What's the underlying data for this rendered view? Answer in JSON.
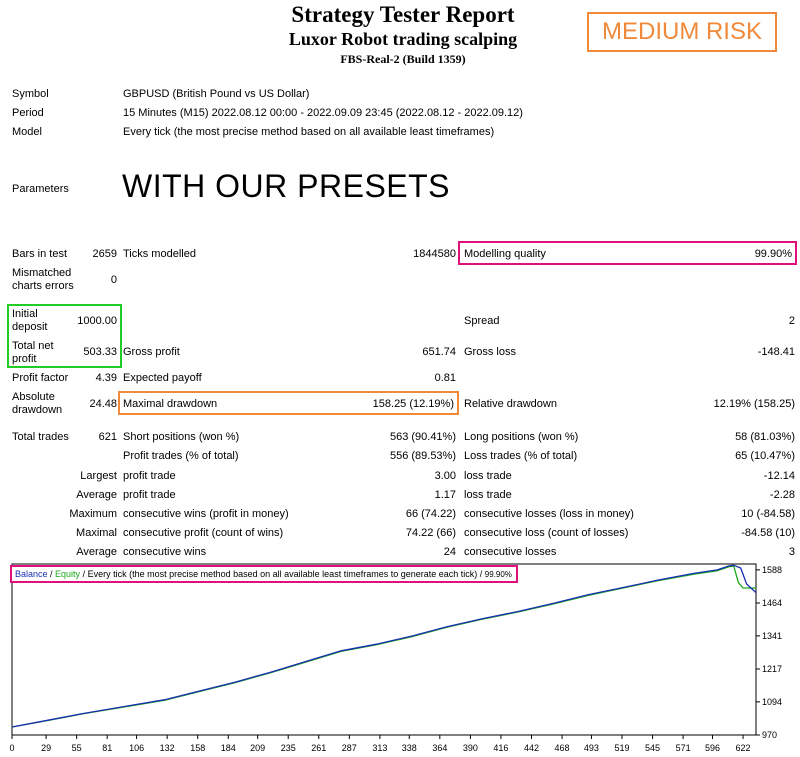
{
  "header": {
    "title": "Strategy Tester Report",
    "subtitle": "Luxor Robot trading scalping",
    "server": "FBS-Real-2 (Build 1359)",
    "risk_badge": "MEDIUM RISK"
  },
  "info": {
    "symbol_label": "Symbol",
    "symbol_value": "GBPUSD (British Pound vs US Dollar)",
    "period_label": "Period",
    "period_value": "15 Minutes (M15) 2022.08.12 00:00 - 2022.09.09 23:45 (2022.08.12 - 2022.09.12)",
    "model_label": "Model",
    "model_value": "Every tick (the most precise method based on all available least timeframes)",
    "parameters_label": "Parameters",
    "parameters_value": "WITH OUR PRESETS"
  },
  "stats": {
    "bars_label": "Bars in test",
    "bars_value": "2659",
    "ticks_label": "Ticks modelled",
    "ticks_value": "1844580",
    "quality_label": "Modelling quality",
    "quality_value": "99.90%",
    "mismatch_label_1": "Mismatched",
    "mismatch_label_2": "charts errors",
    "mismatch_value": "0",
    "deposit_label_1": "Initial",
    "deposit_label_2": "deposit",
    "deposit_value": "1000.00",
    "spread_label": "Spread",
    "spread_value": "2",
    "netprofit_label_1": "Total net",
    "netprofit_label_2": "profit",
    "netprofit_value": "503.33",
    "grossprofit_label": "Gross profit",
    "grossprofit_value": "651.74",
    "grossloss_label": "Gross loss",
    "grossloss_value": "-148.41",
    "pf_label": "Profit factor",
    "pf_value": "4.39",
    "payoff_label": "Expected payoff",
    "payoff_value": "0.81",
    "absdd_label_1": "Absolute",
    "absdd_label_2": "drawdown",
    "absdd_value": "24.48",
    "maxdd_label": "Maximal drawdown",
    "maxdd_value": "158.25 (12.19%)",
    "reldd_label": "Relative drawdown",
    "reldd_value": "12.19% (158.25)"
  },
  "trades": {
    "total_label": "Total trades",
    "total_value": "621",
    "short_label": "Short positions (won %)",
    "short_value": "563 (90.41%)",
    "long_label": "Long positions (won %)",
    "long_value": "58 (81.03%)",
    "profit_trades_label": "Profit trades (% of total)",
    "profit_trades_value": "556 (89.53%)",
    "loss_trades_label": "Loss trades (% of total)",
    "loss_trades_value": "65 (10.47%)",
    "largest_label": "Largest",
    "largest_profit_label": "profit trade",
    "largest_profit_value": "3.00",
    "largest_loss_label": "loss trade",
    "largest_loss_value": "-12.14",
    "average_label": "Average",
    "average_profit_label": "profit trade",
    "average_profit_value": "1.17",
    "average_loss_label": "loss trade",
    "average_loss_value": "-2.28",
    "maximum_label": "Maximum",
    "max_cons_wins_label": "consecutive wins (profit in money)",
    "max_cons_wins_value": "66 (74.22)",
    "max_cons_losses_label": "consecutive losses (loss in money)",
    "max_cons_losses_value": "10 (-84.58)",
    "maximal_label": "Maximal",
    "maximal_profit_label": "consecutive profit (count of wins)",
    "maximal_profit_value": "74.22 (66)",
    "maximal_loss_label": "consecutive loss (count of losses)",
    "maximal_loss_value": "-84.58 (10)",
    "avg2_label": "Average",
    "avg_cons_wins_label": "consecutive wins",
    "avg_cons_wins_value": "24",
    "avg_cons_losses_label": "consecutive losses",
    "avg_cons_losses_value": "3"
  },
  "chart_legend": {
    "balance": "Balance",
    "slash1": " / ",
    "equity": "Equity",
    "text": " / Every tick (the most precise method based on all available least timeframes to generate each tick)",
    "slash2": " / ",
    "quality": "99.90%"
  },
  "colors": {
    "balance": "#1a2fb0",
    "equity": "#1aa81a",
    "highlight_pink": "#e0107a",
    "highlight_green": "#22cc22",
    "highlight_orange": "#f08a3a"
  },
  "chart_data": {
    "type": "line",
    "x_ticks": [
      "0",
      "29",
      "55",
      "81",
      "106",
      "132",
      "158",
      "184",
      "209",
      "235",
      "261",
      "287",
      "313",
      "338",
      "364",
      "390",
      "416",
      "442",
      "468",
      "493",
      "519",
      "545",
      "571",
      "596",
      "622"
    ],
    "y_ticks": [
      "1588",
      "1464",
      "1341",
      "1217",
      "1094",
      "970"
    ],
    "ylim": [
      970,
      1610
    ],
    "xlim": [
      0,
      633
    ],
    "series": [
      {
        "name": "Balance",
        "x": [
          0,
          30,
          60,
          100,
          130,
          160,
          190,
          220,
          250,
          280,
          310,
          340,
          370,
          400,
          430,
          460,
          490,
          520,
          550,
          580,
          600,
          610,
          614,
          620,
          625,
          633
        ],
        "y": [
          1000,
          1025,
          1050,
          1080,
          1102,
          1135,
          1168,
          1205,
          1245,
          1285,
          1310,
          1340,
          1375,
          1405,
          1432,
          1462,
          1495,
          1522,
          1550,
          1575,
          1588,
          1603,
          1605,
          1595,
          1535,
          1503
        ]
      },
      {
        "name": "Equity",
        "x": [
          0,
          30,
          60,
          100,
          130,
          160,
          190,
          220,
          250,
          280,
          310,
          340,
          370,
          400,
          430,
          460,
          490,
          520,
          550,
          580,
          600,
          610,
          614,
          618,
          622,
          628,
          633
        ],
        "y": [
          1000,
          1024,
          1049,
          1078,
          1100,
          1133,
          1166,
          1203,
          1243,
          1283,
          1308,
          1338,
          1373,
          1403,
          1430,
          1460,
          1492,
          1520,
          1548,
          1572,
          1585,
          1600,
          1602,
          1540,
          1520,
          1520,
          1520
        ]
      }
    ]
  }
}
